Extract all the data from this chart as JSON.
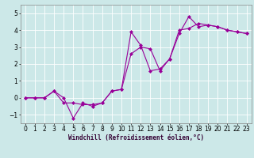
{
  "line1_x": [
    0,
    1,
    2,
    3,
    4,
    5,
    6,
    7,
    8,
    9,
    10,
    11,
    12,
    13,
    14,
    15,
    16,
    17,
    18,
    19,
    20,
    21,
    22,
    23
  ],
  "line1_y": [
    0.0,
    0.0,
    0.0,
    0.4,
    0.0,
    -1.2,
    -0.3,
    -0.5,
    -0.3,
    0.4,
    0.5,
    3.9,
    3.1,
    1.6,
    1.7,
    2.3,
    3.8,
    4.8,
    4.2,
    4.3,
    4.2,
    4.0,
    3.9,
    3.8
  ],
  "line2_x": [
    0,
    1,
    2,
    3,
    4,
    5,
    6,
    7,
    8,
    9,
    10,
    11,
    12,
    13,
    14,
    15,
    16,
    17,
    18,
    19,
    20,
    21,
    22,
    23
  ],
  "line2_y": [
    0.0,
    0.0,
    0.0,
    0.4,
    -0.3,
    -0.3,
    -0.4,
    -0.4,
    -0.3,
    0.4,
    0.5,
    2.6,
    3.0,
    2.9,
    1.6,
    2.3,
    4.0,
    4.1,
    4.4,
    4.3,
    4.2,
    4.0,
    3.9,
    3.8
  ],
  "line_color": "#990099",
  "marker": "D",
  "marker_size": 2,
  "bg_color": "#cce8e8",
  "grid_color": "#ffffff",
  "xlabel": "Windchill (Refroidissement éolien,°C)",
  "xlim": [
    -0.5,
    23.5
  ],
  "ylim": [
    -1.5,
    5.5
  ],
  "xticks": [
    0,
    1,
    2,
    3,
    4,
    5,
    6,
    7,
    8,
    9,
    10,
    11,
    12,
    13,
    14,
    15,
    16,
    17,
    18,
    19,
    20,
    21,
    22,
    23
  ],
  "yticks": [
    -1,
    0,
    1,
    2,
    3,
    4,
    5
  ],
  "xlabel_fontsize": 5.5,
  "tick_fontsize": 5.5,
  "linewidth": 0.8
}
